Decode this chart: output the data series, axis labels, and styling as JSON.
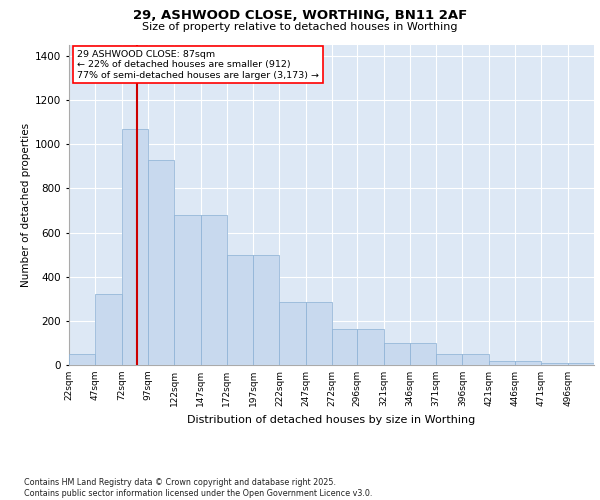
{
  "title1": "29, ASHWOOD CLOSE, WORTHING, BN11 2AF",
  "title2": "Size of property relative to detached houses in Worthing",
  "xlabel": "Distribution of detached houses by size in Worthing",
  "ylabel": "Number of detached properties",
  "bar_color": "#c8d9ee",
  "bar_edge_color": "#8ab0d4",
  "background_color": "#dde8f5",
  "grid_color": "#ffffff",
  "annotation_text": "29 ASHWOOD CLOSE: 87sqm\n← 22% of detached houses are smaller (912)\n77% of semi-detached houses are larger (3,173) →",
  "vline_x": 87,
  "vline_color": "#cc0000",
  "footer": "Contains HM Land Registry data © Crown copyright and database right 2025.\nContains public sector information licensed under the Open Government Licence v3.0.",
  "bin_edges": [
    22,
    47,
    72,
    97,
    122,
    147,
    172,
    197,
    222,
    247,
    272,
    296,
    321,
    346,
    371,
    396,
    421,
    446,
    471,
    496,
    521
  ],
  "bar_heights": [
    50,
    320,
    1070,
    930,
    680,
    680,
    500,
    500,
    285,
    285,
    165,
    165,
    100,
    100,
    50,
    50,
    18,
    18,
    7,
    7
  ],
  "ylim": [
    0,
    1450
  ],
  "yticks": [
    0,
    200,
    400,
    600,
    800,
    1000,
    1200,
    1400
  ]
}
